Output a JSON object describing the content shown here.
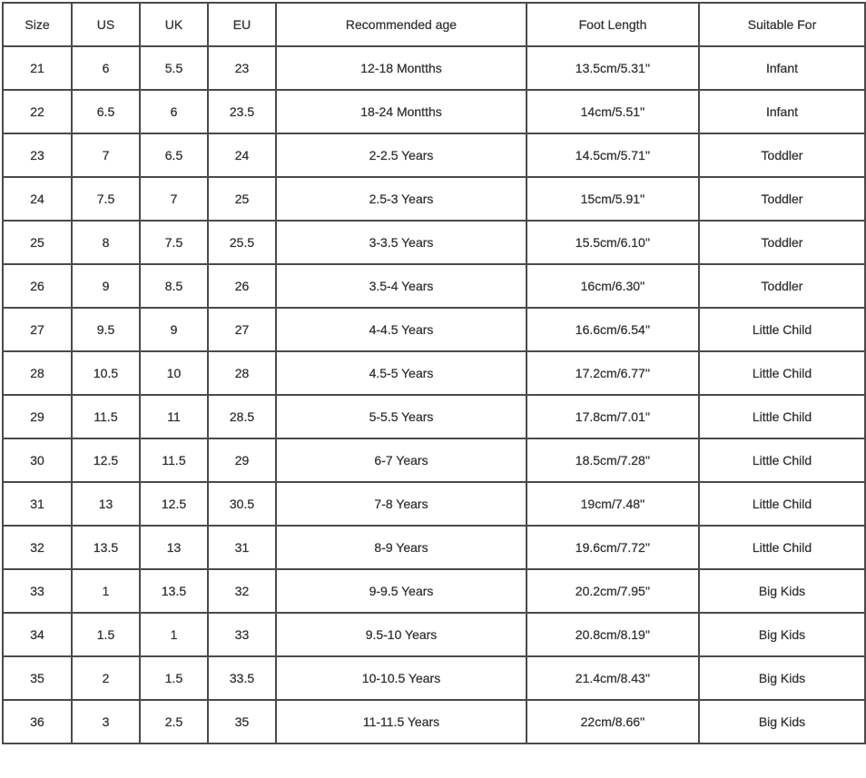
{
  "table": {
    "headers": [
      "Size",
      "US",
      "UK",
      "EU",
      "Recommended age",
      "Foot Length",
      "Suitable For"
    ],
    "rows": [
      [
        "21",
        "6",
        "5.5",
        "23",
        "12-18 Montths",
        "13.5cm/5.31''",
        "Infant"
      ],
      [
        "22",
        "6.5",
        "6",
        "23.5",
        "18-24 Montths",
        "14cm/5.51''",
        "Infant"
      ],
      [
        "23",
        "7",
        "6.5",
        "24",
        "2-2.5 Years",
        "14.5cm/5.71''",
        "Toddler"
      ],
      [
        "24",
        "7.5",
        "7",
        "25",
        "2.5-3 Years",
        "15cm/5.91''",
        "Toddler"
      ],
      [
        "25",
        "8",
        "7.5",
        "25.5",
        "3-3.5 Years",
        "15.5cm/6.10''",
        "Toddler"
      ],
      [
        "26",
        "9",
        "8.5",
        "26",
        "3.5-4 Years",
        "16cm/6.30''",
        "Toddler"
      ],
      [
        "27",
        "9.5",
        "9",
        "27",
        "4-4.5 Years",
        "16.6cm/6.54''",
        "Little Child"
      ],
      [
        "28",
        "10.5",
        "10",
        "28",
        "4.5-5 Years",
        "17.2cm/6.77''",
        "Little Child"
      ],
      [
        "29",
        "11.5",
        "11",
        "28.5",
        "5-5.5 Years",
        "17.8cm/7.01''",
        "Little Child"
      ],
      [
        "30",
        "12.5",
        "11.5",
        "29",
        "6-7 Years",
        "18.5cm/7.28''",
        "Little Child"
      ],
      [
        "31",
        "13",
        "12.5",
        "30.5",
        "7-8 Years",
        "19cm/7.48''",
        "Little Child"
      ],
      [
        "32",
        "13.5",
        "13",
        "31",
        "8-9 Years",
        "19.6cm/7.72''",
        "Little Child"
      ],
      [
        "33",
        "1",
        "13.5",
        "32",
        "9-9.5 Years",
        "20.2cm/7.95''",
        "Big Kids"
      ],
      [
        "34",
        "1.5",
        "1",
        "33",
        "9.5-10 Years",
        "20.8cm/8.19''",
        "Big Kids"
      ],
      [
        "35",
        "2",
        "1.5",
        "33.5",
        "10-10.5 Years",
        "21.4cm/8.43''",
        "Big Kids"
      ],
      [
        "36",
        "3",
        "2.5",
        "35",
        "11-11.5 Years",
        "22cm/8.66''",
        "Big Kids"
      ]
    ]
  }
}
